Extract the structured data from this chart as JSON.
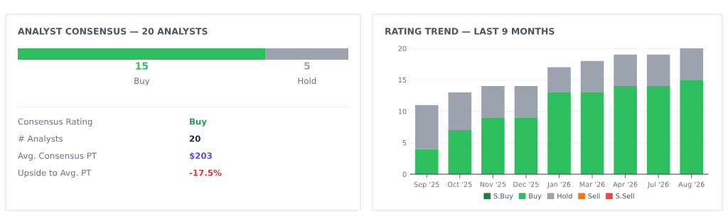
{
  "chart_data": [
    {
      "type": "bar",
      "orientation": "horizontal",
      "stacked": true,
      "title": "ANALYST CONSENSUS — 20 ANALYSTS",
      "categories": [
        null
      ],
      "xlim": [
        0,
        20
      ],
      "tick_labels": false,
      "series": [
        {
          "name": "Buy",
          "color": "#2ebd5f",
          "values": [
            15
          ],
          "value_labels": [
            "15"
          ]
        },
        {
          "name": "Hold",
          "color": "#9ca3af",
          "values": [
            5
          ],
          "value_labels": [
            "5"
          ]
        }
      ],
      "annotations": [
        "Consensus Rating",
        "Buy",
        "# Analysts",
        "20",
        "Avg. Consensus PT",
        "$203",
        "Upside to Avg. PT",
        "-17.5%"
      ]
    },
    {
      "type": "bar",
      "stacked": true,
      "title": "RATING TREND — LAST 9 MONTHS",
      "categories": [
        "Sep '25",
        "Oct '25",
        "Nov '25",
        "Dec '25",
        "Jan '26",
        "Mar '26",
        "Apr '26",
        "Jul '26",
        "Aug '26"
      ],
      "ylim": [
        0,
        20
      ],
      "yticks": [
        0,
        5,
        10,
        15,
        20
      ],
      "grid": "y",
      "legend": "bottom",
      "series": [
        {
          "name": "S.Buy",
          "color": "#1a7f4b",
          "values": [
            0,
            0,
            0,
            0,
            0,
            0,
            0,
            0,
            0
          ]
        },
        {
          "name": "Buy",
          "color": "#2ebd5f",
          "values": [
            4,
            7,
            9,
            9,
            13,
            13,
            14,
            14,
            15
          ]
        },
        {
          "name": "Hold",
          "color": "#9ca3af",
          "values": [
            7,
            6,
            5,
            5,
            4,
            5,
            5,
            5,
            5
          ]
        },
        {
          "name": "Sell",
          "color": "#f97316",
          "values": [
            0,
            0,
            0,
            0,
            0,
            0,
            0,
            0,
            0
          ]
        },
        {
          "name": "S.Sell",
          "color": "#ef4444",
          "values": [
            0,
            0,
            0,
            0,
            0,
            0,
            0,
            0,
            0
          ]
        }
      ]
    }
  ]
}
